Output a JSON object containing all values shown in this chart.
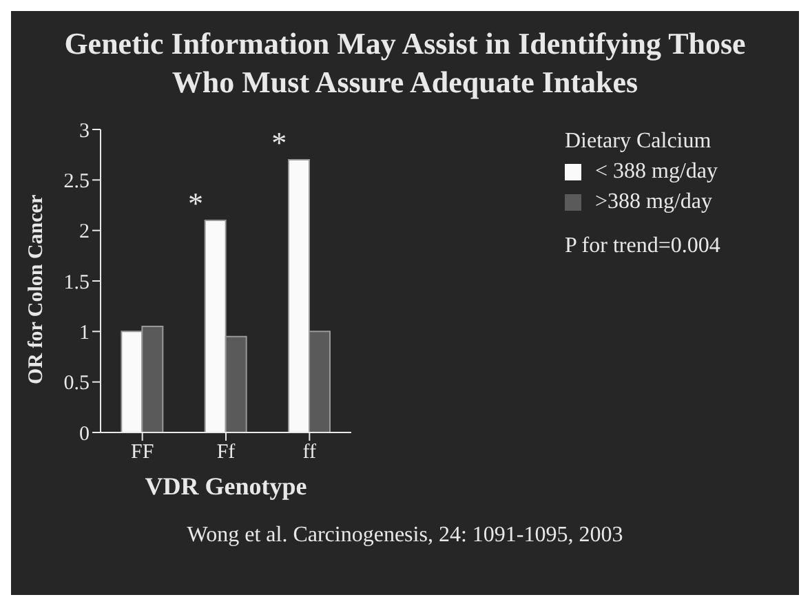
{
  "chart_data": {
    "type": "bar",
    "title": "Genetic Information May Assist in Identifying Those Who Must Assure Adequate Intakes",
    "xlabel": "VDR Genotype",
    "ylabel": "OR for Colon Cancer",
    "legend_title": "Dietary Calcium",
    "categories": [
      "FF",
      "Ff",
      "ff"
    ],
    "series": [
      {
        "name": "< 388 mg/day",
        "color": "#fafafa",
        "values": [
          1.0,
          2.1,
          2.7
        ]
      },
      {
        "name": ">388 mg/day",
        "color": "#5a5a5a",
        "values": [
          1.05,
          0.95,
          1.0
        ]
      }
    ],
    "ylim": [
      0,
      3
    ],
    "yticks": [
      0,
      0.5,
      1,
      1.5,
      2,
      2.5,
      3
    ],
    "grid": false,
    "legend": "top right",
    "annotations": [
      {
        "text": "*",
        "x": "Ff",
        "y": 2.1
      },
      {
        "text": "*",
        "x": "ff",
        "y": 2.7
      },
      "P for trend=0.004",
      "Wong et al. Carcinogenesis, 24: 1091-1095, 2003"
    ]
  }
}
